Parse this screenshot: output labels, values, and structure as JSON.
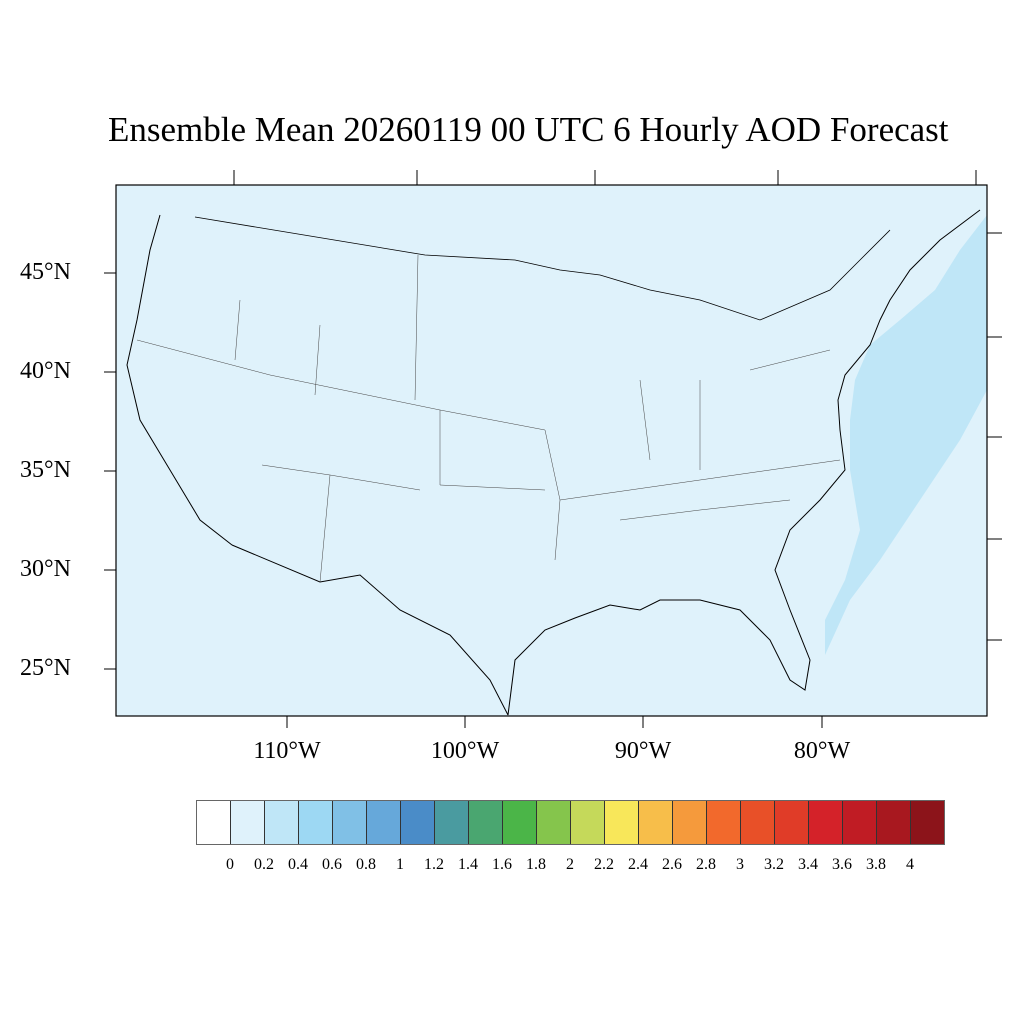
{
  "title": "Ensemble Mean 20260119 00 UTC 6 Hourly AOD Forecast",
  "lat_labels": [
    "45°N",
    "40°N",
    "35°N",
    "30°N",
    "25°N"
  ],
  "lon_labels": [
    "110°W",
    "100°W",
    "90°W",
    "80°W"
  ],
  "colors": {
    "background": "#dff2fb",
    "aod_02_04": "#bfe6f7"
  },
  "colorbar": {
    "labels": [
      "0",
      "0.2",
      "0.4",
      "0.6",
      "0.8",
      "1",
      "1.2",
      "1.4",
      "1.6",
      "1.8",
      "2",
      "2.2",
      "2.4",
      "2.6",
      "2.8",
      "3",
      "3.2",
      "3.4",
      "3.6",
      "3.8",
      "4"
    ],
    "colors": [
      "#ffffff",
      "#dff2fb",
      "#bfe6f7",
      "#9dd8f3",
      "#80c0e6",
      "#66a8da",
      "#4a8cc8",
      "#4a9ba0",
      "#4aa670",
      "#4bb548",
      "#85c54c",
      "#c5d95a",
      "#f8e75a",
      "#f7be4a",
      "#f59a3c",
      "#f2692c",
      "#e85028",
      "#e03c28",
      "#d42229",
      "#c01c24",
      "#a8181f",
      "#8c141a"
    ]
  }
}
